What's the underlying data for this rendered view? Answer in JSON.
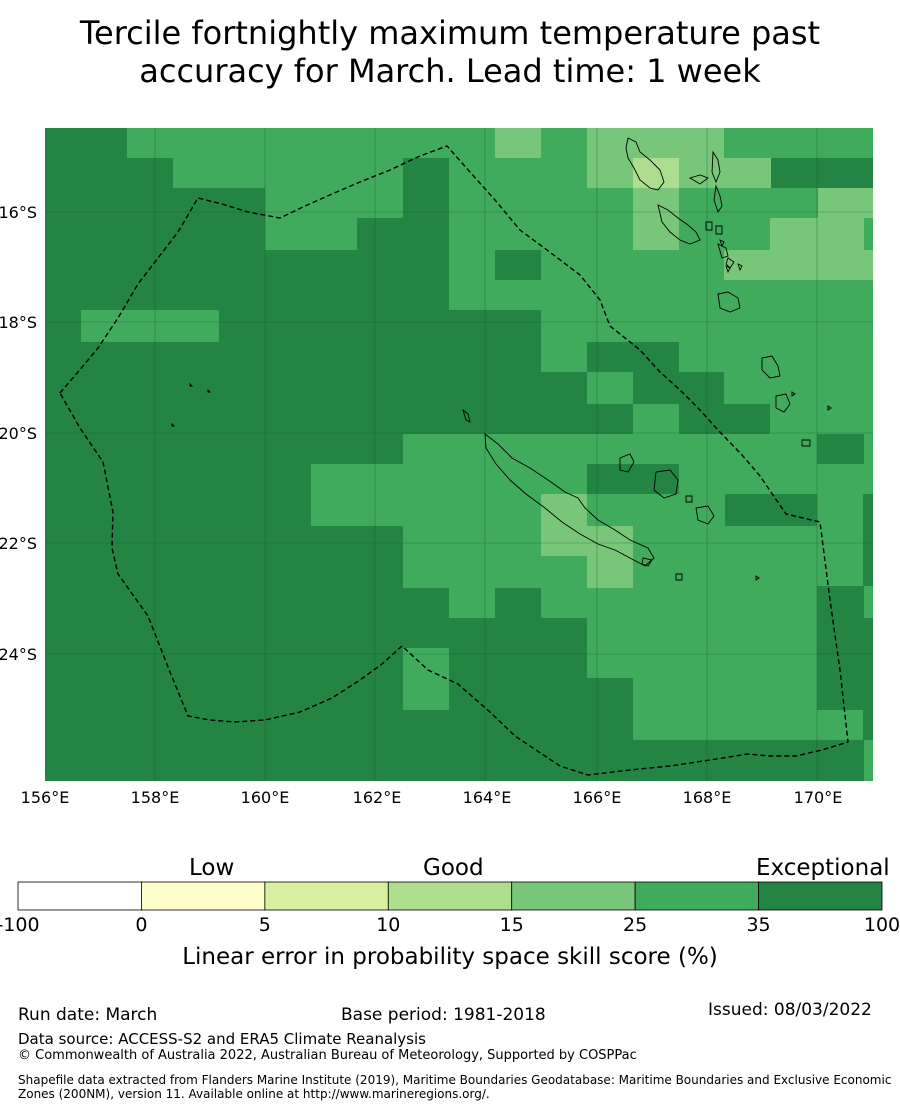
{
  "title_line1": "Tercile fortnightly maximum temperature past",
  "title_line2": "accuracy for March. Lead time: 1 week",
  "map": {
    "lon_labels": [
      "156°E",
      "158°E",
      "160°E",
      "162°E",
      "164°E",
      "166°E",
      "168°E",
      "170°E"
    ],
    "lat_labels": [
      "16°S",
      "18°S",
      "20°S",
      "22°S",
      "24°S"
    ],
    "region": "Pacific: New Caledonia / Vanuatu EEZ area"
  },
  "legend": {
    "categories": {
      "low": "Low",
      "good": "Good",
      "exceptional": "Exceptional"
    },
    "ticks": [
      "-100",
      "0",
      "5",
      "10",
      "15",
      "25",
      "35",
      "100"
    ],
    "colors": [
      "#ffffff",
      "#ffffcc",
      "#d9f0a3",
      "#addd8e",
      "#78c679",
      "#41ab5d",
      "#238443"
    ],
    "label": "Linear error in probability space skill score (%)"
  },
  "footer": {
    "run_date": "Run date: March",
    "base_period": "Base period: 1981-2018",
    "issued": "Issued: 08/03/2022",
    "data_source": "Data source: ACCESS-S2 and ERA5 Climate Reanalysis",
    "copyright": "© Commonwealth of Australia 2022, Australian Bureau of Meteorology, Supported by COSPPac",
    "shapefile": "Shapefile data extracted from Flanders Marine Institute (2019), Maritime Boundaries Geodatabase: Maritime Boundaries and Exclusive Economic Zones (200NM), version 11. Available online at http://www.marineregions.org/."
  }
}
